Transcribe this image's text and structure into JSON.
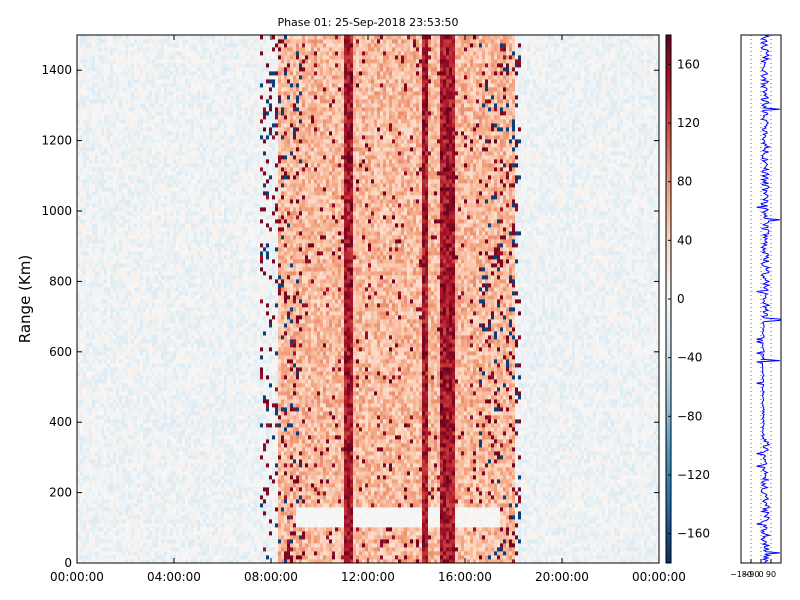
{
  "chart_data": [
    {
      "type": "heatmap",
      "title": "Phase 01: 25-Sep-2018 23:53:50",
      "ylabel": "Range (Km)",
      "xlabel": "",
      "xlim_hours": [
        0,
        24
      ],
      "ylim": [
        0,
        1500
      ],
      "x_ticks": [
        "00:00:00",
        "04:00:00",
        "08:00:00",
        "12:00:00",
        "16:00:00",
        "20:00:00",
        "00:00:00"
      ],
      "y_ticks": [
        "0",
        "200",
        "400",
        "600",
        "800",
        "1000",
        "1200",
        "1400"
      ],
      "colormap": "RdBu_r",
      "colorbar": {
        "vmin": -180,
        "vmax": 180,
        "ticks": [
          "160",
          "120",
          "80",
          "40",
          "0",
          "−40",
          "−80",
          "−120",
          "−160"
        ],
        "tick_values": [
          160,
          120,
          80,
          40,
          0,
          -40,
          -80,
          -120,
          -160
        ]
      },
      "description_bands": {
        "low_phase_hours": [
          [
            0,
            7.5
          ],
          [
            18.2,
            24
          ]
        ],
        "high_phase_hours": [
          [
            8.3,
            18.0
          ]
        ],
        "strong_columns_hours": [
          11.2,
          14.3,
          15.1,
          15.4
        ]
      },
      "colors": {
        "negative": "#053061",
        "neutral": "#f7f7f7",
        "positive": "#67001f"
      }
    },
    {
      "type": "line",
      "orientation": "vertical",
      "xlim": [
        -180,
        180
      ],
      "x_ticks": [
        "−180",
        "−90",
        "0",
        "90"
      ],
      "ylim": [
        0,
        1500
      ],
      "color": "#0000ff"
    }
  ]
}
